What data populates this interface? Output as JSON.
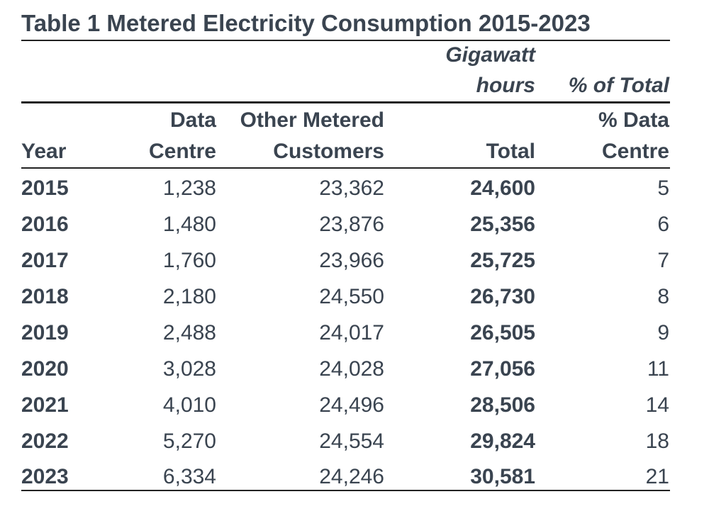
{
  "title": "Table 1 Metered Electricity Consumption 2015-2023",
  "unit_header": {
    "line1": "Gigawatt",
    "line2": "hours",
    "pct_header": "% of Total"
  },
  "columns": {
    "year": "Year",
    "data_centre_line1": "Data",
    "data_centre_line2": "Centre",
    "other_line1": "Other Metered",
    "other_line2": "Customers",
    "total": "Total",
    "pct_line1": "% Data",
    "pct_line2": "Centre"
  },
  "rows": [
    {
      "year": "2015",
      "data_centre": "1,238",
      "other": "23,362",
      "total": "24,600",
      "pct": "5"
    },
    {
      "year": "2016",
      "data_centre": "1,480",
      "other": "23,876",
      "total": "25,356",
      "pct": "6"
    },
    {
      "year": "2017",
      "data_centre": "1,760",
      "other": "23,966",
      "total": "25,725",
      "pct": "7"
    },
    {
      "year": "2018",
      "data_centre": "2,180",
      "other": "24,550",
      "total": "26,730",
      "pct": "8"
    },
    {
      "year": "2019",
      "data_centre": "2,488",
      "other": "24,017",
      "total": "26,505",
      "pct": "9"
    },
    {
      "year": "2020",
      "data_centre": "3,028",
      "other": "24,028",
      "total": "27,056",
      "pct": "11"
    },
    {
      "year": "2021",
      "data_centre": "4,010",
      "other": "24,496",
      "total": "28,506",
      "pct": "14"
    },
    {
      "year": "2022",
      "data_centre": "5,270",
      "other": "24,554",
      "total": "29,824",
      "pct": "18"
    },
    {
      "year": "2023",
      "data_centre": "6,334",
      "other": "24,246",
      "total": "30,581",
      "pct": "21"
    }
  ]
}
